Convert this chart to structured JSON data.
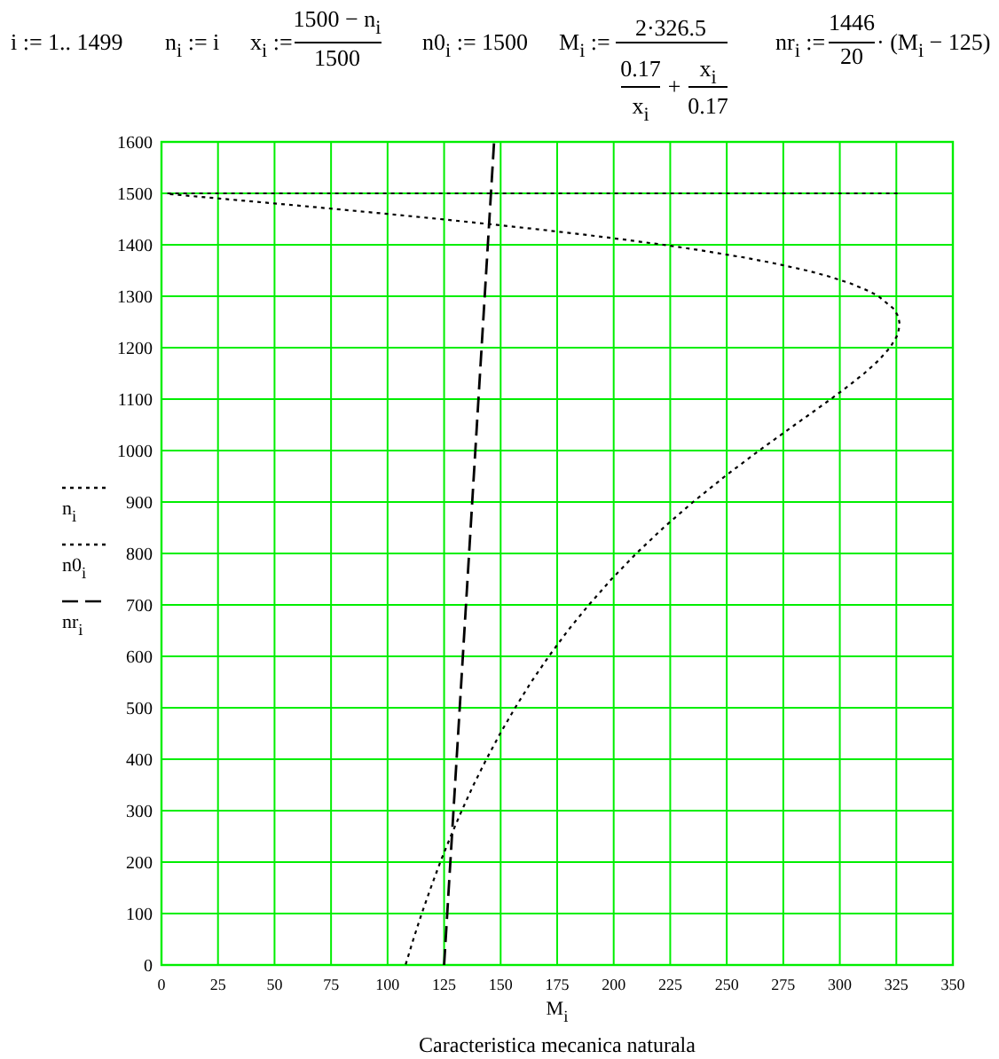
{
  "chart_data": {
    "type": "line",
    "title": "Caracteristica mecanica naturala",
    "xlabel": "M$_{i}$",
    "annotations": [
      "i := 1.. 1499",
      "n$_{i}$ := i",
      "x$_{i}$ :=",
      "1500 − n$_{i}$",
      "1500",
      "n0$_{i}$ := 1500",
      "M$_{i}$ :=",
      "2·326.5",
      "0.17",
      "x$_{i}$",
      "+",
      "x$_{i}$",
      "0.17",
      "nr$_{i}$ :=",
      "1446",
      "20",
      "· (M$_{i}$ − 125)"
    ],
    "xlim": [
      0,
      350
    ],
    "xticks": [
      0,
      25,
      50,
      75,
      100,
      125,
      150,
      175,
      200,
      225,
      250,
      275,
      300,
      325,
      350
    ],
    "ylim": [
      0,
      1600
    ],
    "yticks": [
      0,
      100,
      200,
      300,
      400,
      500,
      600,
      700,
      800,
      900,
      1000,
      1100,
      1200,
      1300,
      1400,
      1500,
      1600
    ],
    "grid": true,
    "legend": "left",
    "series": [
      {
        "name": "n$_{i}$",
        "color": "#000000",
        "line_style": "dotted",
        "x": [
          108.0,
          111.4,
          115.1,
          119.1,
          123.3,
          127.9,
          132.8,
          138.0,
          143.7,
          149.8,
          156.4,
          163.5,
          171.3,
          179.7,
          189.0,
          199.0,
          210.0,
          222.0,
          235.1,
          249.2,
          264.3,
          280.1,
          288.1,
          296.0,
          303.6,
          310.8,
          317.1,
          322.2,
          325.6,
          326.5,
          325.9,
          324.0,
          317.1,
          312.9,
          304.7,
          294.0,
          285.4,
          270.0,
          258.1,
          237.5,
          221.9,
          204.9,
          186.5,
          166.7,
          145.6,
          123.3,
          100.0,
          75.8,
          63.4,
          50.9,
          38.3,
          25.6,
          12.8,
          2.6
        ],
        "values": [
          1,
          50,
          100,
          150,
          200,
          250,
          300,
          350,
          400,
          450,
          500,
          550,
          600,
          650,
          700,
          750,
          800,
          850,
          900,
          950,
          1000,
          1050,
          1075,
          1100,
          1125,
          1150,
          1175,
          1200,
          1225,
          1245,
          1260,
          1275,
          1300,
          1310,
          1325,
          1340,
          1350,
          1365,
          1375,
          1390,
          1400,
          1410,
          1420,
          1430,
          1440,
          1450,
          1460,
          1470,
          1475,
          1480,
          1485,
          1490,
          1495,
          1499
        ]
      },
      {
        "name": "n0$_{i}$",
        "color": "#000000",
        "line_style": "dotted",
        "x": [
          2.6,
          326.5
        ],
        "values": [
          1500,
          1500
        ]
      },
      {
        "name": "nr$_{i}$",
        "color": "#000000",
        "line_style": "dashed",
        "x": [
          125,
          147.1
        ],
        "values": [
          0,
          1600
        ]
      }
    ]
  }
}
